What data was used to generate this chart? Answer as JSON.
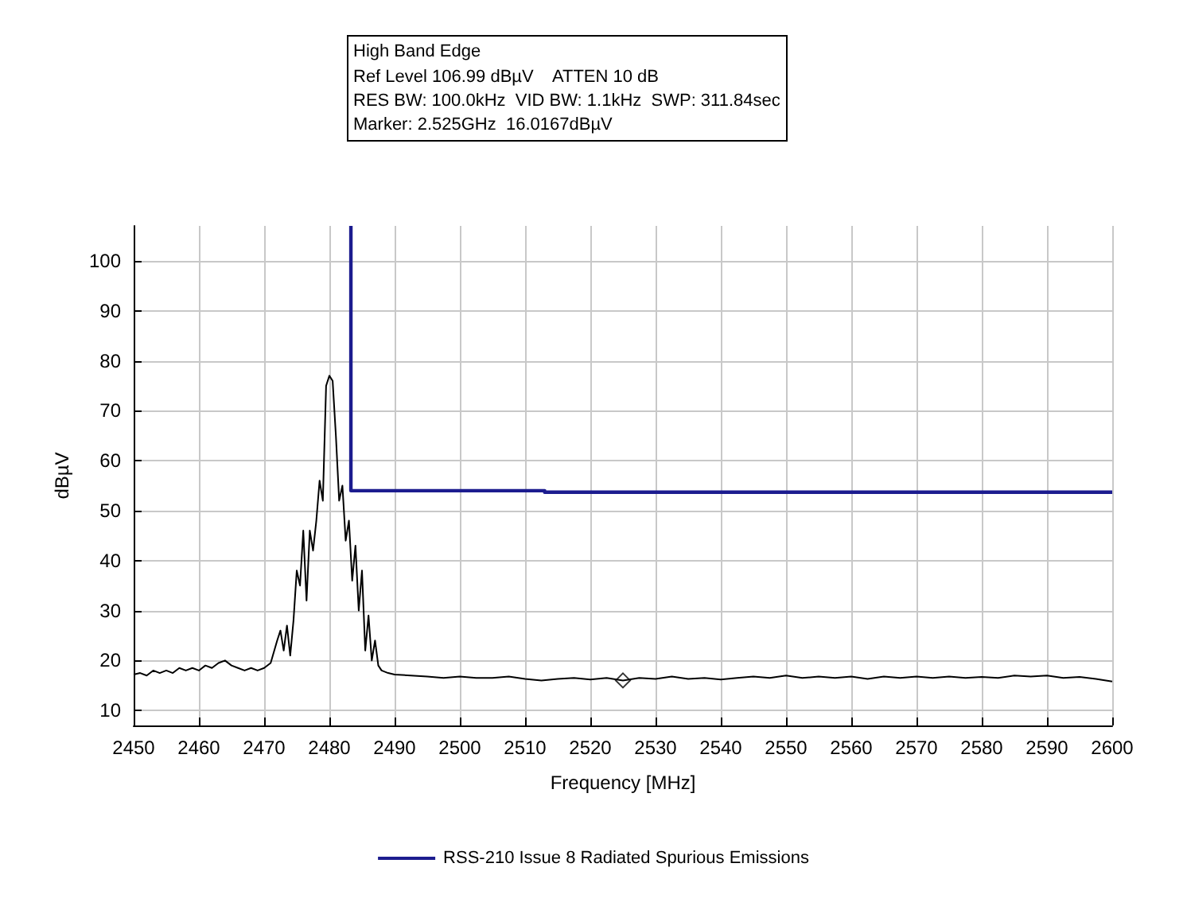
{
  "chart_data": {
    "type": "line",
    "title": "High Band Edge",
    "annotations": [
      "Ref Level 106.99 dBµV    ATTEN 10 dB",
      "RES BW: 100.0kHz  VID BW: 1.1kHz  SWP: 311.84sec",
      "Marker: 2.525GHz  16.0167dBµV"
    ],
    "xlabel": "Frequency [MHz]",
    "ylabel": "dBµV",
    "xlim": [
      2450,
      2600
    ],
    "ylim": [
      7,
      107
    ],
    "xticks": [
      2450,
      2460,
      2470,
      2480,
      2490,
      2500,
      2510,
      2520,
      2530,
      2540,
      2550,
      2560,
      2570,
      2580,
      2590,
      2600
    ],
    "yticks": [
      10,
      20,
      30,
      40,
      50,
      60,
      70,
      80,
      90,
      100
    ],
    "grid": true,
    "legend": "bottom",
    "marker": "none",
    "line_style": "solid",
    "series": [
      {
        "color": "#000000",
        "x": [
          2450,
          2451,
          2452,
          2453,
          2454,
          2455,
          2456,
          2457,
          2458,
          2459,
          2460,
          2461,
          2462,
          2463,
          2464,
          2465,
          2466,
          2467,
          2468,
          2469,
          2470,
          2471,
          2472,
          2472.5,
          2473,
          2473.5,
          2474,
          2474.5,
          2475,
          2475.5,
          2476,
          2476.5,
          2477,
          2477.5,
          2478,
          2478.5,
          2479,
          2479.5,
          2480,
          2480.5,
          2481,
          2481.5,
          2482,
          2482.5,
          2483,
          2483.5,
          2484,
          2484.5,
          2485,
          2485.5,
          2486,
          2486.5,
          2487,
          2487.5,
          2488,
          2489,
          2490,
          2492.5,
          2495,
          2497.5,
          2500,
          2502.5,
          2505,
          2507.5,
          2510,
          2512.5,
          2515,
          2517.5,
          2520,
          2522.5,
          2525,
          2527.5,
          2530,
          2532.5,
          2535,
          2537.5,
          2540,
          2542.5,
          2545,
          2547.5,
          2550,
          2552.5,
          2555,
          2557.5,
          2560,
          2562.5,
          2565,
          2567.5,
          2570,
          2572.5,
          2575,
          2577.5,
          2580,
          2582.5,
          2585,
          2587.5,
          2590,
          2592.5,
          2595,
          2597.5,
          2600
        ],
        "values": [
          17.2,
          17.5,
          17,
          18,
          17.5,
          18,
          17.5,
          18.5,
          18,
          18.5,
          18,
          19,
          18.5,
          19.5,
          20,
          19,
          18.5,
          18,
          18.5,
          18,
          18.5,
          19.5,
          24,
          26,
          22,
          27,
          21,
          28,
          38,
          35,
          46,
          32,
          46,
          42,
          48,
          56,
          52,
          75,
          77,
          76,
          65,
          52,
          55,
          44,
          48,
          36,
          43,
          30,
          38,
          22,
          29,
          20,
          24,
          19,
          18,
          17.5,
          17.2,
          17,
          16.8,
          16.5,
          16.8,
          16.5,
          16.5,
          16.8,
          16.3,
          16,
          16.3,
          16.5,
          16.2,
          16.5,
          16,
          16.5,
          16.3,
          16.8,
          16.3,
          16.5,
          16.2,
          16.5,
          16.8,
          16.5,
          17,
          16.5,
          16.8,
          16.5,
          16.8,
          16.3,
          16.8,
          16.5,
          16.8,
          16.5,
          16.8,
          16.5,
          16.7,
          16.5,
          17,
          16.8,
          17,
          16.5,
          16.7,
          16.3,
          15.8
        ]
      },
      {
        "name": "RSS-210 Issue 8 Radiated Spurious Emissions",
        "color": "#1c1c8f",
        "x": [
          2483.3,
          2483.3,
          2513,
          2513,
          2600
        ],
        "values": [
          107,
          54,
          54,
          53.7,
          53.7
        ]
      },
      {
        "type": "scatter",
        "marker": "diamond",
        "color": "#000000",
        "x": [
          2525
        ],
        "values": [
          16.0167
        ]
      }
    ]
  }
}
